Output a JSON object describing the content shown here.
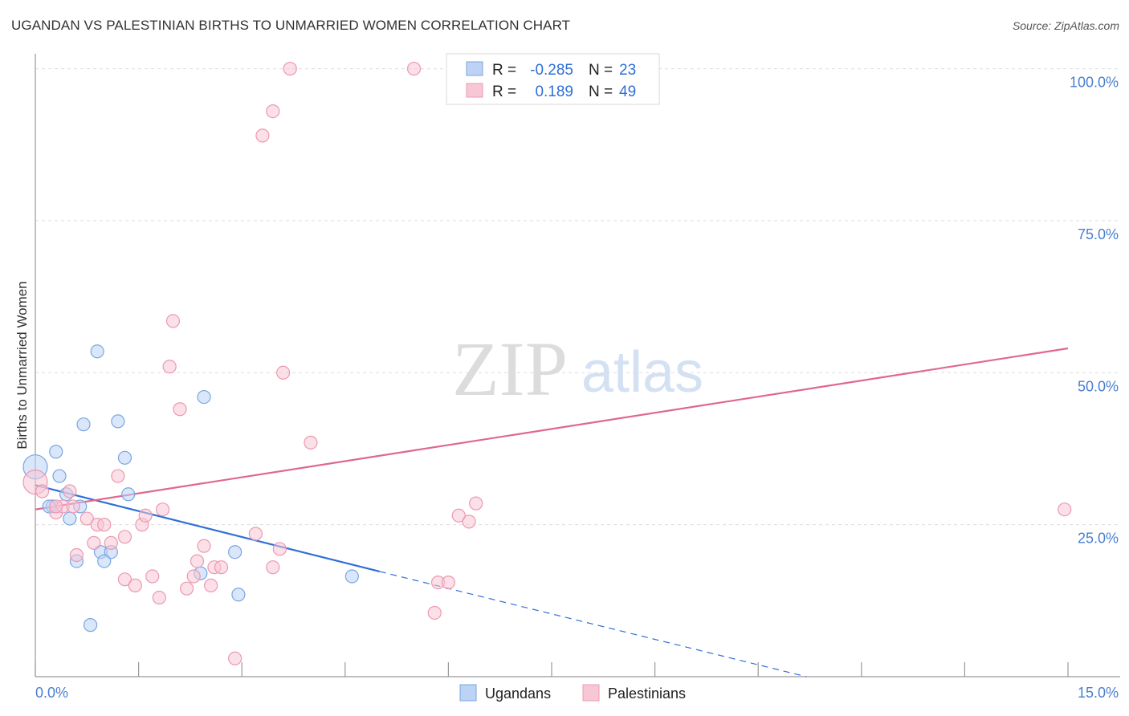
{
  "header": {
    "title": "UGANDAN VS PALESTINIAN BIRTHS TO UNMARRIED WOMEN CORRELATION CHART",
    "source": "Source: ZipAtlas.com"
  },
  "watermark": {
    "zip": "ZIP",
    "atlas": "atlas"
  },
  "chart_data": {
    "type": "scatter",
    "title": "UGANDAN VS PALESTINIAN BIRTHS TO UNMARRIED WOMEN CORRELATION CHART",
    "xlabel": "",
    "ylabel": "Births to Unmarried Women",
    "xlim": [
      0,
      15
    ],
    "ylim": [
      0,
      101
    ],
    "x_tick_labels": [
      "0.0%",
      "15.0%"
    ],
    "y_ticks": [
      25,
      50,
      75,
      100
    ],
    "y_tick_labels": [
      "25.0%",
      "50.0%",
      "75.0%",
      "100.0%"
    ],
    "legend": {
      "placement": "bottom-center",
      "entries": [
        "Ugandans",
        "Palestinians"
      ]
    },
    "stats": [
      {
        "r_label": "R =",
        "r": "-0.285",
        "n_label": "N =",
        "n": "23"
      },
      {
        "r_label": "R =",
        "r": "0.189",
        "n_label": "N =",
        "n": "49"
      }
    ],
    "series": [
      {
        "name": "Ugandans",
        "color": "#7aa6e0",
        "fill": "#bcd3f5",
        "line_color": "#2f6fd6",
        "trend": {
          "x0": 0,
          "y0": 31.5,
          "x1": 5.0,
          "y1": 17.3,
          "dash_to_x": 11.2,
          "dash_to_y": 0
        },
        "points": [
          [
            0.0,
            34.5
          ],
          [
            0.3,
            37
          ],
          [
            0.35,
            33
          ],
          [
            0.25,
            28
          ],
          [
            0.2,
            28
          ],
          [
            0.45,
            30
          ],
          [
            0.5,
            26
          ],
          [
            0.65,
            28
          ],
          [
            0.7,
            41.5
          ],
          [
            0.6,
            19
          ],
          [
            0.9,
            53.5
          ],
          [
            1.2,
            42
          ],
          [
            1.3,
            36
          ],
          [
            1.35,
            30
          ],
          [
            0.95,
            20.5
          ],
          [
            1.1,
            20.5
          ],
          [
            1.0,
            19
          ],
          [
            0.8,
            8.5
          ],
          [
            2.45,
            46
          ],
          [
            2.4,
            17
          ],
          [
            2.9,
            20.5
          ],
          [
            2.95,
            13.5
          ],
          [
            4.6,
            16.5
          ]
        ]
      },
      {
        "name": "Palestinians",
        "color": "#ec98b2",
        "fill": "#f8c7d6",
        "line_color": "#e0678f",
        "trend": {
          "x0": 0,
          "y0": 27.5,
          "x1": 15.0,
          "y1": 54.0
        },
        "points": [
          [
            0.0,
            32
          ],
          [
            0.1,
            30.5
          ],
          [
            0.3,
            27
          ],
          [
            0.4,
            28
          ],
          [
            0.5,
            30.5
          ],
          [
            0.55,
            28
          ],
          [
            0.6,
            20
          ],
          [
            0.75,
            26
          ],
          [
            0.85,
            22
          ],
          [
            0.9,
            25
          ],
          [
            1.0,
            25
          ],
          [
            1.1,
            22
          ],
          [
            1.2,
            33
          ],
          [
            1.3,
            16
          ],
          [
            1.3,
            23
          ],
          [
            1.45,
            15
          ],
          [
            1.55,
            25
          ],
          [
            1.6,
            26.5
          ],
          [
            1.7,
            16.5
          ],
          [
            1.8,
            13
          ],
          [
            1.85,
            27.5
          ],
          [
            1.95,
            51
          ],
          [
            2.0,
            58.5
          ],
          [
            2.1,
            44
          ],
          [
            2.2,
            14.5
          ],
          [
            2.3,
            16.5
          ],
          [
            2.35,
            19
          ],
          [
            2.45,
            21.5
          ],
          [
            2.55,
            15
          ],
          [
            2.6,
            18
          ],
          [
            2.7,
            18
          ],
          [
            2.9,
            3
          ],
          [
            3.2,
            23.5
          ],
          [
            3.3,
            89
          ],
          [
            3.45,
            93
          ],
          [
            3.45,
            18
          ],
          [
            3.55,
            21
          ],
          [
            3.6,
            50
          ],
          [
            3.7,
            100
          ],
          [
            4.0,
            38.5
          ],
          [
            5.5,
            100
          ],
          [
            5.8,
            10.5
          ],
          [
            5.85,
            15.5
          ],
          [
            6.0,
            15.5
          ],
          [
            6.15,
            26.5
          ],
          [
            6.3,
            25.5
          ],
          [
            6.4,
            28.5
          ],
          [
            0.3,
            28
          ],
          [
            14.95,
            27.5
          ]
        ]
      }
    ]
  }
}
